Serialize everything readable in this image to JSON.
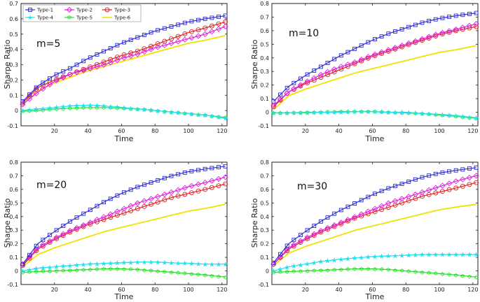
{
  "chart_data": [
    {
      "type": "line",
      "panel_label": "m=5",
      "xlabel": "Time",
      "ylabel": "Sharpe Ratio",
      "xlim": [
        0,
        123
      ],
      "ylim": [
        -0.1,
        0.7
      ],
      "xticks": [
        20,
        40,
        60,
        80,
        100,
        120
      ],
      "yticks": [
        -0.1,
        0,
        0.1,
        0.2,
        0.3,
        0.4,
        0.5,
        0.6,
        0.7
      ],
      "legend": true,
      "series": [
        {
          "name": "Type-1",
          "color": "#2b2bd8",
          "marker": "square",
          "x": [
            1,
            10,
            20,
            30,
            40,
            50,
            60,
            70,
            80,
            90,
            100,
            110,
            122
          ],
          "y": [
            0.06,
            0.16,
            0.23,
            0.28,
            0.34,
            0.39,
            0.44,
            0.48,
            0.52,
            0.55,
            0.58,
            0.6,
            0.62
          ]
        },
        {
          "name": "Type-2",
          "color": "#e020e0",
          "marker": "diamond",
          "x": [
            1,
            10,
            20,
            30,
            40,
            50,
            60,
            70,
            80,
            90,
            100,
            110,
            122
          ],
          "y": [
            0.04,
            0.12,
            0.19,
            0.24,
            0.27,
            0.3,
            0.34,
            0.37,
            0.41,
            0.44,
            0.47,
            0.5,
            0.55
          ]
        },
        {
          "name": "Type-3",
          "color": "#e02020",
          "marker": "circle",
          "x": [
            1,
            10,
            20,
            30,
            40,
            50,
            60,
            70,
            80,
            90,
            100,
            110,
            122
          ],
          "y": [
            0.05,
            0.15,
            0.2,
            0.24,
            0.28,
            0.32,
            0.36,
            0.39,
            0.43,
            0.47,
            0.51,
            0.54,
            0.58
          ]
        },
        {
          "name": "Type-4",
          "color": "#22e0f0",
          "marker": "star",
          "x": [
            1,
            10,
            20,
            30,
            40,
            50,
            60,
            70,
            80,
            90,
            100,
            110,
            122
          ],
          "y": [
            0.0,
            0.01,
            0.02,
            0.03,
            0.035,
            0.03,
            0.02,
            0.01,
            0.0,
            -0.01,
            -0.02,
            -0.03,
            -0.05
          ]
        },
        {
          "name": "Type-5",
          "color": "#22e022",
          "marker": "hexagram",
          "x": [
            1,
            10,
            20,
            30,
            40,
            50,
            60,
            70,
            80,
            90,
            100,
            110,
            122
          ],
          "y": [
            -0.005,
            0.0,
            0.01,
            0.015,
            0.02,
            0.02,
            0.015,
            0.01,
            0.0,
            -0.01,
            -0.02,
            -0.03,
            -0.045
          ]
        },
        {
          "name": "Type-6",
          "color": "#f2e200",
          "marker": "none",
          "x": [
            1,
            10,
            20,
            30,
            40,
            50,
            60,
            70,
            80,
            90,
            100,
            110,
            122
          ],
          "y": [
            0.04,
            0.13,
            0.18,
            0.22,
            0.26,
            0.29,
            0.32,
            0.35,
            0.38,
            0.41,
            0.44,
            0.46,
            0.49
          ]
        }
      ]
    },
    {
      "type": "line",
      "panel_label": "m=10",
      "xlabel": "Time",
      "ylabel": "Sharpe Ratio",
      "xlim": [
        0,
        123
      ],
      "ylim": [
        -0.1,
        0.8
      ],
      "xticks": [
        20,
        40,
        60,
        80,
        100,
        120
      ],
      "yticks": [
        -0.1,
        0,
        0.1,
        0.2,
        0.3,
        0.4,
        0.5,
        0.6,
        0.7,
        0.8
      ],
      "legend": false,
      "series": [
        {
          "name": "Type-1",
          "color": "#2b2bd8",
          "marker": "square",
          "x": [
            1,
            10,
            20,
            30,
            40,
            50,
            60,
            70,
            80,
            90,
            100,
            110,
            122
          ],
          "y": [
            0.08,
            0.19,
            0.27,
            0.34,
            0.41,
            0.47,
            0.53,
            0.58,
            0.62,
            0.66,
            0.69,
            0.71,
            0.73
          ]
        },
        {
          "name": "Type-2",
          "color": "#e020e0",
          "marker": "diamond",
          "x": [
            1,
            10,
            20,
            30,
            40,
            50,
            60,
            70,
            80,
            90,
            100,
            110,
            122
          ],
          "y": [
            0.05,
            0.15,
            0.22,
            0.28,
            0.33,
            0.37,
            0.42,
            0.46,
            0.5,
            0.54,
            0.58,
            0.61,
            0.65
          ]
        },
        {
          "name": "Type-3",
          "color": "#e02020",
          "marker": "circle",
          "x": [
            1,
            10,
            20,
            30,
            40,
            50,
            60,
            70,
            80,
            90,
            100,
            110,
            122
          ],
          "y": [
            0.04,
            0.15,
            0.21,
            0.26,
            0.31,
            0.36,
            0.41,
            0.45,
            0.49,
            0.53,
            0.57,
            0.6,
            0.63
          ]
        },
        {
          "name": "Type-4",
          "color": "#22e0f0",
          "marker": "star",
          "x": [
            1,
            10,
            20,
            30,
            40,
            50,
            60,
            70,
            80,
            90,
            100,
            110,
            122
          ],
          "y": [
            -0.005,
            -0.005,
            -0.005,
            0.0,
            0.0,
            0.005,
            0.005,
            0.0,
            0.0,
            -0.01,
            -0.015,
            -0.025,
            -0.04
          ]
        },
        {
          "name": "Type-5",
          "color": "#22e022",
          "marker": "hexagram",
          "x": [
            1,
            10,
            20,
            30,
            40,
            50,
            60,
            70,
            80,
            90,
            100,
            110,
            122
          ],
          "y": [
            -0.005,
            -0.005,
            0.0,
            0.0,
            0.005,
            0.005,
            0.005,
            0.0,
            -0.005,
            -0.01,
            -0.02,
            -0.03,
            -0.045
          ]
        },
        {
          "name": "Type-6",
          "color": "#f2e200",
          "marker": "none",
          "x": [
            1,
            10,
            20,
            30,
            40,
            50,
            60,
            70,
            80,
            90,
            100,
            110,
            122
          ],
          "y": [
            0.02,
            0.12,
            0.17,
            0.21,
            0.25,
            0.29,
            0.32,
            0.35,
            0.38,
            0.41,
            0.44,
            0.46,
            0.49
          ]
        }
      ]
    },
    {
      "type": "line",
      "panel_label": "m=20",
      "xlabel": "Time",
      "ylabel": "Sharpe Ratio",
      "xlim": [
        0,
        123
      ],
      "ylim": [
        -0.1,
        0.8
      ],
      "xticks": [
        20,
        40,
        60,
        80,
        100,
        120
      ],
      "yticks": [
        -0.1,
        0,
        0.1,
        0.2,
        0.3,
        0.4,
        0.5,
        0.6,
        0.7,
        0.8
      ],
      "legend": false,
      "series": [
        {
          "name": "Type-1",
          "color": "#2b2bd8",
          "marker": "square",
          "x": [
            1,
            10,
            20,
            30,
            40,
            50,
            60,
            70,
            80,
            90,
            100,
            110,
            122
          ],
          "y": [
            0.05,
            0.2,
            0.29,
            0.37,
            0.44,
            0.51,
            0.57,
            0.62,
            0.66,
            0.7,
            0.73,
            0.75,
            0.77
          ]
        },
        {
          "name": "Type-2",
          "color": "#e020e0",
          "marker": "diamond",
          "x": [
            1,
            10,
            20,
            30,
            40,
            50,
            60,
            70,
            80,
            90,
            100,
            110,
            122
          ],
          "y": [
            0.05,
            0.17,
            0.24,
            0.3,
            0.35,
            0.4,
            0.45,
            0.5,
            0.54,
            0.58,
            0.62,
            0.65,
            0.69
          ]
        },
        {
          "name": "Type-3",
          "color": "#e02020",
          "marker": "circle",
          "x": [
            1,
            10,
            20,
            30,
            40,
            50,
            60,
            70,
            80,
            90,
            100,
            110,
            122
          ],
          "y": [
            0.04,
            0.16,
            0.23,
            0.29,
            0.34,
            0.38,
            0.42,
            0.46,
            0.5,
            0.54,
            0.57,
            0.6,
            0.64
          ]
        },
        {
          "name": "Type-4",
          "color": "#22e0f0",
          "marker": "star",
          "x": [
            1,
            10,
            20,
            30,
            40,
            50,
            60,
            70,
            80,
            90,
            100,
            110,
            122
          ],
          "y": [
            0.0,
            0.02,
            0.03,
            0.04,
            0.05,
            0.055,
            0.06,
            0.065,
            0.065,
            0.06,
            0.055,
            0.05,
            0.05
          ]
        },
        {
          "name": "Type-5",
          "color": "#22e022",
          "marker": "hexagram",
          "x": [
            1,
            10,
            20,
            30,
            40,
            50,
            60,
            70,
            80,
            90,
            100,
            110,
            122
          ],
          "y": [
            -0.01,
            -0.005,
            0.0,
            0.005,
            0.01,
            0.015,
            0.015,
            0.01,
            0.0,
            -0.01,
            -0.02,
            -0.03,
            -0.045
          ]
        },
        {
          "name": "Type-6",
          "color": "#f2e200",
          "marker": "none",
          "x": [
            1,
            10,
            20,
            30,
            40,
            50,
            60,
            70,
            80,
            90,
            100,
            110,
            122
          ],
          "y": [
            0.03,
            0.12,
            0.17,
            0.21,
            0.25,
            0.29,
            0.32,
            0.35,
            0.38,
            0.41,
            0.44,
            0.46,
            0.49
          ]
        }
      ]
    },
    {
      "type": "line",
      "panel_label": "m=30",
      "xlabel": "Time",
      "ylabel": "Sharpe Ratio",
      "xlim": [
        0,
        123
      ],
      "ylim": [
        -0.1,
        0.8
      ],
      "xticks": [
        20,
        40,
        60,
        80,
        100,
        120
      ],
      "yticks": [
        -0.1,
        0,
        0.1,
        0.2,
        0.3,
        0.4,
        0.5,
        0.6,
        0.7,
        0.8
      ],
      "legend": false,
      "series": [
        {
          "name": "Type-1",
          "color": "#2b2bd8",
          "marker": "square",
          "x": [
            1,
            10,
            20,
            30,
            40,
            50,
            60,
            70,
            80,
            90,
            100,
            110,
            122
          ],
          "y": [
            0.06,
            0.2,
            0.29,
            0.37,
            0.44,
            0.5,
            0.56,
            0.61,
            0.65,
            0.69,
            0.72,
            0.74,
            0.76
          ]
        },
        {
          "name": "Type-2",
          "color": "#e020e0",
          "marker": "diamond",
          "x": [
            1,
            10,
            20,
            30,
            40,
            50,
            60,
            70,
            80,
            90,
            100,
            110,
            122
          ],
          "y": [
            0.05,
            0.17,
            0.24,
            0.3,
            0.35,
            0.4,
            0.45,
            0.5,
            0.54,
            0.58,
            0.62,
            0.66,
            0.7
          ]
        },
        {
          "name": "Type-3",
          "color": "#e02020",
          "marker": "circle",
          "x": [
            1,
            10,
            20,
            30,
            40,
            50,
            60,
            70,
            80,
            90,
            100,
            110,
            122
          ],
          "y": [
            0.05,
            0.16,
            0.23,
            0.29,
            0.34,
            0.39,
            0.43,
            0.47,
            0.51,
            0.55,
            0.58,
            0.61,
            0.65
          ]
        },
        {
          "name": "Type-4",
          "color": "#22e0f0",
          "marker": "star",
          "x": [
            1,
            10,
            20,
            30,
            40,
            50,
            60,
            70,
            80,
            90,
            100,
            110,
            122
          ],
          "y": [
            0.0,
            0.03,
            0.05,
            0.07,
            0.085,
            0.095,
            0.105,
            0.11,
            0.115,
            0.12,
            0.12,
            0.12,
            0.12
          ]
        },
        {
          "name": "Type-5",
          "color": "#22e022",
          "marker": "hexagram",
          "x": [
            1,
            10,
            20,
            30,
            40,
            50,
            60,
            70,
            80,
            90,
            100,
            110,
            122
          ],
          "y": [
            -0.01,
            -0.005,
            0.0,
            0.005,
            0.01,
            0.015,
            0.015,
            0.01,
            0.0,
            -0.01,
            -0.02,
            -0.03,
            -0.045
          ]
        },
        {
          "name": "Type-6",
          "color": "#f2e200",
          "marker": "none",
          "x": [
            1,
            10,
            20,
            30,
            40,
            50,
            60,
            70,
            80,
            90,
            100,
            110,
            122
          ],
          "y": [
            0.04,
            0.13,
            0.18,
            0.22,
            0.26,
            0.3,
            0.33,
            0.36,
            0.39,
            0.42,
            0.45,
            0.47,
            0.49
          ]
        }
      ]
    }
  ]
}
